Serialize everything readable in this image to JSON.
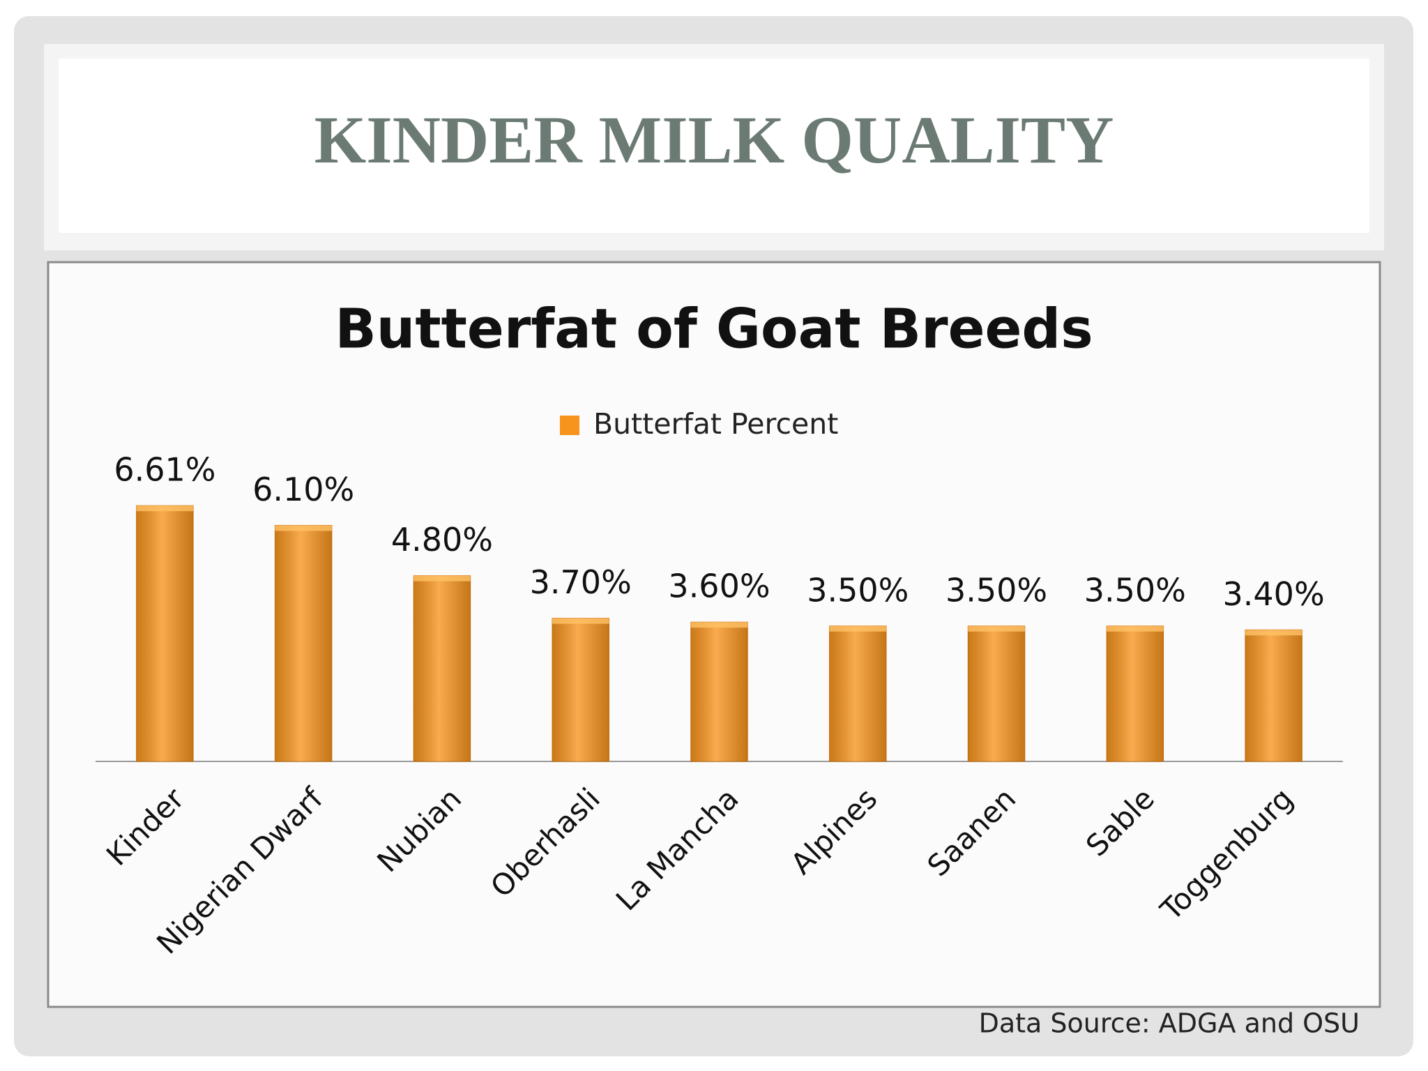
{
  "slide": {
    "title": "KINDER MILK QUALITY",
    "source": "Data Source: ADGA and OSU"
  },
  "chart_data": {
    "type": "bar",
    "title": "Butterfat of Goat Breeds",
    "categories": [
      "Kinder",
      "Nigerian Dwarf",
      "Nubian",
      "Oberhasli",
      "La Mancha",
      "Alpines",
      "Saanen",
      "Sable",
      "Toggenburg"
    ],
    "series": [
      {
        "name": "Butterfat Percent",
        "color": "#f7941d",
        "values": [
          6.61,
          6.1,
          4.8,
          3.7,
          3.6,
          3.5,
          3.5,
          3.5,
          3.4
        ],
        "value_labels": [
          "6.61%",
          "6.10%",
          "4.80%",
          "3.70%",
          "3.60%",
          "3.50%",
          "3.50%",
          "3.50%",
          "3.40%"
        ]
      }
    ],
    "ylim": [
      0,
      8
    ],
    "legend": "top",
    "grid": false
  }
}
